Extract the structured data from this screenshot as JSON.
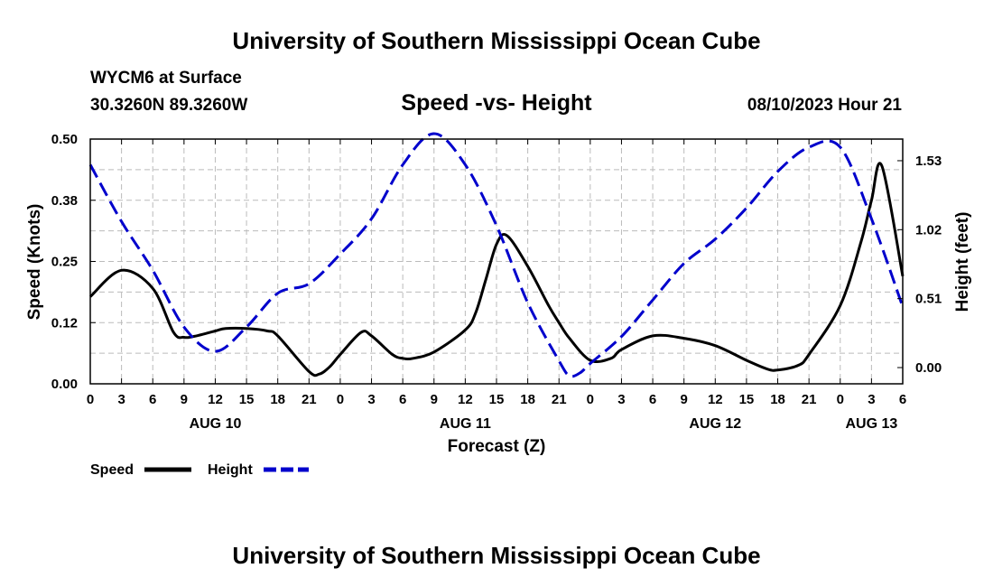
{
  "page": {
    "title": "University of Southern Mississippi Ocean Cube",
    "footer_title": "University of Southern Mississippi Ocean Cube"
  },
  "header": {
    "station": "WYCM6 at Surface",
    "coords": "30.3260N  89.3260W",
    "subtitle": "Speed -vs- Height",
    "datetime": "08/10/2023 Hour 21"
  },
  "chart_data": {
    "type": "line",
    "xlabel": "Forecast (Z)",
    "ylabel": "Speed (Knots)",
    "y2label": "Height (feet)",
    "xlim": [
      0,
      78
    ],
    "ylim": [
      0,
      0.5
    ],
    "y2lim": [
      -0.12,
      1.69
    ],
    "x_tick_values": [
      0,
      3,
      6,
      9,
      12,
      15,
      18,
      21,
      24,
      27,
      30,
      33,
      36,
      39,
      42,
      45,
      48,
      51,
      54,
      57,
      60,
      63,
      66,
      69,
      72,
      75,
      78
    ],
    "x_tick_labels": [
      "0",
      "3",
      "6",
      "9",
      "12",
      "15",
      "18",
      "21",
      "0",
      "3",
      "6",
      "9",
      "12",
      "15",
      "18",
      "21",
      "0",
      "3",
      "6",
      "9",
      "12",
      "15",
      "18",
      "21",
      "0",
      "3",
      "6"
    ],
    "y_tick_values": [
      0,
      0.125,
      0.25,
      0.375,
      0.5
    ],
    "y_tick_labels": [
      "0.00",
      "0.12",
      "0.25",
      "0.38",
      "0.50"
    ],
    "y2_tick_values": [
      0,
      0.51,
      1.02,
      1.53
    ],
    "y2_tick_labels": [
      "0.00",
      "0.51",
      "1.02",
      "1.53"
    ],
    "day_labels": [
      {
        "label": "AUG 10",
        "x": 12
      },
      {
        "label": "AUG 11",
        "x": 36
      },
      {
        "label": "AUG 12",
        "x": 60
      },
      {
        "label": "AUG 13",
        "x": 75
      }
    ],
    "colors": {
      "speed": "#000000",
      "height": "#0000cc",
      "grid": "#bbbbbb"
    },
    "series": [
      {
        "name": "Speed",
        "axis": "left",
        "color": "#000000",
        "style": "solid",
        "x": [
          0,
          3,
          6,
          8,
          9,
          10,
          12,
          13,
          15,
          17,
          18,
          21,
          22,
          23,
          24,
          26,
          27,
          29,
          30,
          31,
          33,
          36,
          37,
          38,
          39,
          40,
          42,
          44,
          45,
          46,
          48,
          50,
          51,
          54,
          57,
          60,
          63,
          65,
          66,
          68,
          69,
          72,
          74,
          75,
          76,
          78
        ],
        "y": [
          0.178,
          0.232,
          0.195,
          0.105,
          0.095,
          0.097,
          0.108,
          0.113,
          0.113,
          0.108,
          0.098,
          0.025,
          0.02,
          0.035,
          0.06,
          0.105,
          0.098,
          0.06,
          0.052,
          0.052,
          0.065,
          0.11,
          0.145,
          0.215,
          0.285,
          0.303,
          0.24,
          0.16,
          0.125,
          0.093,
          0.048,
          0.052,
          0.07,
          0.098,
          0.093,
          0.078,
          0.048,
          0.03,
          0.028,
          0.038,
          0.06,
          0.16,
          0.29,
          0.375,
          0.445,
          0.22
        ]
      },
      {
        "name": "Height",
        "axis": "right",
        "color": "#0000cc",
        "style": "dashed",
        "x": [
          0,
          3,
          6,
          9,
          12,
          15,
          18,
          21,
          24,
          27,
          30,
          33,
          36,
          39,
          42,
          45,
          46,
          47,
          48,
          51,
          54,
          57,
          60,
          63,
          66,
          69,
          72,
          75,
          78
        ],
        "y": [
          1.5,
          1.08,
          0.72,
          0.3,
          0.12,
          0.3,
          0.55,
          0.62,
          0.84,
          1.1,
          1.5,
          1.73,
          1.5,
          1.05,
          0.48,
          0.05,
          -0.06,
          -0.04,
          0.03,
          0.23,
          0.5,
          0.77,
          0.95,
          1.18,
          1.45,
          1.63,
          1.63,
          1.1,
          0.45
        ]
      }
    ],
    "legend": [
      {
        "label": "Speed",
        "color": "#000000",
        "style": "solid"
      },
      {
        "label": "Height",
        "color": "#0000cc",
        "style": "dashed"
      }
    ]
  }
}
